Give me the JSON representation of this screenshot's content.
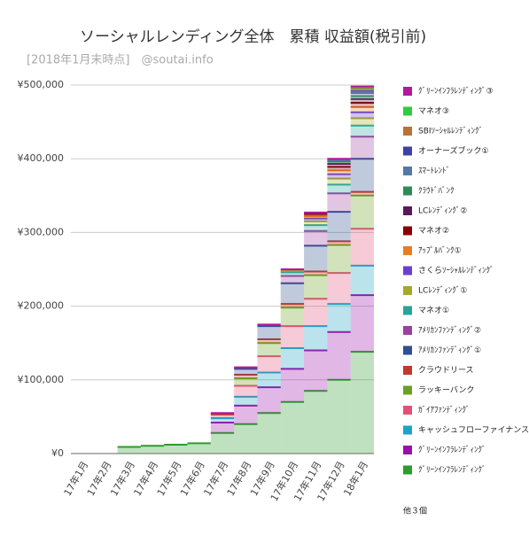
{
  "chart_data": {
    "type": "stacked-step-area",
    "title": "ソーシャルレンディング全体　累積 収益額(税引前)",
    "subtitle": "[2018年1月末時点]　@soutai.info",
    "categories": [
      "17年1月",
      "17年2月",
      "17年3月",
      "17年4月",
      "17年5月",
      "17年6月",
      "17年7月",
      "17年8月",
      "17年9月",
      "17年10月",
      "17年11月",
      "17年12月",
      "18年1月"
    ],
    "ylim": [
      0,
      500000
    ],
    "yticks": [
      {
        "value": 0,
        "label": "¥0"
      },
      {
        "value": 100000,
        "label": "¥100,000"
      },
      {
        "value": 200000,
        "label": "¥200,000"
      },
      {
        "value": 300000,
        "label": "¥300,000"
      },
      {
        "value": 400000,
        "label": "¥400,000"
      },
      {
        "value": 500000,
        "label": "¥500,000"
      }
    ],
    "grid": true,
    "legend_more": "他３個",
    "series": [
      {
        "name": "ｸﾞﾘｰﾝｲﾝﾌﾗﾚﾝﾃﾞｨﾝｸﾞ③",
        "color": "#b5179e",
        "values": [
          0,
          0,
          0,
          0,
          0,
          0,
          2000,
          2000,
          2000,
          2000,
          2000,
          2000,
          1000
        ]
      },
      {
        "name": "マネオ③",
        "color": "#2ecc40",
        "values": [
          0,
          0,
          0,
          0,
          0,
          0,
          0,
          0,
          0,
          0,
          0,
          0,
          2000
        ]
      },
      {
        "name": "SBIｿｰｼｬﾙﾚﾝﾃﾞｨﾝｸﾞ",
        "color": "#b87333",
        "values": [
          0,
          0,
          0,
          0,
          0,
          0,
          0,
          0,
          0,
          0,
          0,
          0,
          3000
        ]
      },
      {
        "name": "オーナーズブック①",
        "color": "#3f3fa8",
        "values": [
          0,
          0,
          0,
          0,
          0,
          0,
          0,
          0,
          0,
          0,
          0,
          0,
          3000
        ]
      },
      {
        "name": "ｽﾏｰﾄﾚﾝﾄﾞ",
        "color": "#5577aa",
        "values": [
          0,
          0,
          0,
          0,
          0,
          0,
          0,
          0,
          0,
          0,
          0,
          2000,
          4000
        ]
      },
      {
        "name": "ｸﾗｳﾄﾞﾊﾞﾝｸ",
        "color": "#2e8b57",
        "values": [
          0,
          0,
          0,
          0,
          0,
          0,
          0,
          0,
          0,
          0,
          0,
          3000,
          4000
        ]
      },
      {
        "name": "LCﾚﾝﾃﾞｨﾝｸﾞ②",
        "color": "#5a1a5a",
        "values": [
          0,
          0,
          0,
          0,
          0,
          0,
          0,
          0,
          0,
          0,
          0,
          4000,
          5000
        ]
      },
      {
        "name": "マネオ②",
        "color": "#8b0000",
        "values": [
          0,
          0,
          0,
          0,
          0,
          0,
          0,
          0,
          0,
          0,
          3000,
          5000,
          6000
        ]
      },
      {
        "name": "ｱｯﾌﾟﾙﾊﾞﾝｸ①",
        "color": "#e67e22",
        "values": [
          0,
          0,
          0,
          0,
          0,
          0,
          0,
          0,
          0,
          0,
          3000,
          5000,
          7000
        ]
      },
      {
        "name": "さくらｿｰｼｬﾙﾚﾝﾃﾞｨﾝｸﾞ",
        "color": "#6a3fd0",
        "values": [
          0,
          0,
          0,
          0,
          0,
          0,
          0,
          0,
          0,
          0,
          4000,
          6000,
          8000
        ]
      },
      {
        "name": "LCﾚﾝﾃﾞｨﾝｸﾞ①",
        "color": "#a8a82a",
        "values": [
          0,
          0,
          0,
          0,
          0,
          0,
          0,
          0,
          0,
          2000,
          5000,
          8000,
          10000
        ]
      },
      {
        "name": "マネオ①",
        "color": "#26a69a",
        "values": [
          0,
          0,
          0,
          0,
          0,
          0,
          0,
          0,
          0,
          5000,
          8000,
          12000,
          15000
        ]
      },
      {
        "name": "ｱﾒﾘｶﾝﾌｧﾝﾃﾞｨﾝｸﾞ②",
        "color": "#9b3fa0",
        "values": [
          0,
          0,
          0,
          0,
          0,
          0,
          0,
          0,
          0,
          10000,
          20000,
          25000,
          30000
        ]
      },
      {
        "name": "ｱﾒﾘｶﾝﾌｧﾝﾃﾞｨﾝｸﾞ①",
        "color": "#2f4f8f",
        "values": [
          0,
          0,
          0,
          0,
          0,
          0,
          0,
          8000,
          18000,
          28000,
          35000,
          40000,
          45000
        ]
      },
      {
        "name": "クラウドリース",
        "color": "#c0392b",
        "values": [
          0,
          0,
          0,
          0,
          0,
          0,
          5000,
          5000,
          5000,
          5000,
          5000,
          5000,
          5000
        ]
      },
      {
        "name": "ラッキーバンク",
        "color": "#6aa121",
        "values": [
          0,
          0,
          0,
          0,
          0,
          0,
          0,
          10000,
          18000,
          25000,
          32000,
          38000,
          45000
        ]
      },
      {
        "name": "ｶﾞｲｱﾌｧﾝﾃﾞｨﾝｸﾞ",
        "color": "#e0507a",
        "values": [
          0,
          0,
          0,
          0,
          0,
          0,
          0,
          15000,
          22000,
          30000,
          37000,
          42000,
          50000
        ]
      },
      {
        "name": "キャッシュフローファイナンス",
        "color": "#1ca3c8",
        "values": [
          0,
          0,
          0,
          0,
          0,
          0,
          6000,
          12000,
          20000,
          28000,
          33000,
          38000,
          40000
        ]
      },
      {
        "name": "ｸﾞﾘｰﾝｲﾝﾌﾗﾚﾝﾃﾞｨﾝｸﾞ",
        "color": "#9b10a8",
        "values": [
          0,
          0,
          0,
          0,
          0,
          0,
          14000,
          25000,
          35000,
          45000,
          55000,
          65000,
          77000
        ]
      },
      {
        "name": "ｸﾞﾘｰﾝｲﾝﾌﾗﾚﾝﾃﾞｨﾝｸﾞ",
        "color": "#2a9d2a",
        "values": [
          0,
          0,
          9000,
          10500,
          12000,
          14000,
          28000,
          40000,
          55000,
          70000,
          85000,
          100000,
          138000
        ]
      }
    ]
  }
}
